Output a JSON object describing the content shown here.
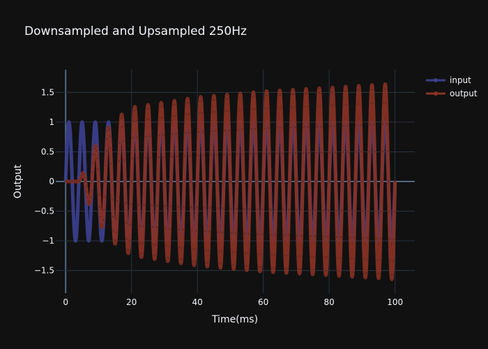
{
  "chart_data": {
    "type": "line",
    "title": "Downsampled and Upsampled 250Hz",
    "xlabel": "Time(ms)",
    "ylabel": "Output",
    "xlim": [
      -3,
      106
    ],
    "ylim": [
      -1.88,
      1.88
    ],
    "x_ticks": [
      0,
      20,
      40,
      60,
      80,
      100
    ],
    "x_tick_labels": [
      "0",
      "20",
      "40",
      "60",
      "80",
      "100"
    ],
    "y_ticks": [
      -1.5,
      -1,
      -0.5,
      0,
      0.5,
      1,
      1.5
    ],
    "y_tick_labels": [
      "−1.5",
      "−1",
      "−0.5",
      "0",
      "0.5",
      "1",
      "1.5"
    ],
    "grid": true,
    "legend_position": "top-right",
    "series": [
      {
        "name": "input",
        "color": "#3b3f8c",
        "x_start": 0,
        "x_end": 100,
        "description": "sine, amplitude 1, period 4 ms",
        "amplitude": 1,
        "period_ms": 4
      },
      {
        "name": "output",
        "color": "#8a3224",
        "x_start": 0,
        "x_end": 100,
        "delay_ms": 4,
        "period_ms": 4,
        "amplitude_points": [
          [
            4,
            0
          ],
          [
            8,
            0.5
          ],
          [
            10,
            0.7
          ],
          [
            15,
            1.05
          ],
          [
            20,
            1.25
          ],
          [
            40,
            1.42
          ],
          [
            60,
            1.52
          ],
          [
            80,
            1.58
          ],
          [
            100,
            1.65
          ]
        ]
      }
    ]
  }
}
